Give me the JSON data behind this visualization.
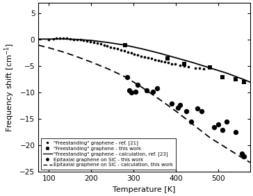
{
  "title": "",
  "xlabel": "Temperature [K]",
  "ylabel": "Frequency shift [cm$^{-1}$]",
  "xlim": [
    75,
    575
  ],
  "ylim": [
    -25,
    7
  ],
  "yticks": [
    -25,
    -20,
    -15,
    -10,
    -5,
    0,
    5
  ],
  "xticks": [
    100,
    200,
    300,
    400,
    500
  ],
  "freestanding_ref21_x": [
    100,
    110,
    118,
    126,
    134,
    142,
    150,
    158,
    166,
    174,
    182,
    190,
    198,
    206,
    214,
    222,
    230,
    238,
    246,
    254,
    262,
    270,
    278,
    286,
    294,
    302,
    310,
    318,
    326,
    334,
    342,
    350,
    358,
    366,
    374,
    382,
    390,
    398,
    410,
    420,
    430,
    445,
    455,
    465
  ],
  "freestanding_ref21_y": [
    0.1,
    0.2,
    0.25,
    0.3,
    0.3,
    0.25,
    0.2,
    0.1,
    0.05,
    0.0,
    -0.1,
    -0.2,
    -0.3,
    -0.5,
    -0.6,
    -0.8,
    -1.0,
    -1.2,
    -1.4,
    -1.5,
    -1.7,
    -1.9,
    -2.1,
    -2.3,
    -2.5,
    -2.7,
    -2.9,
    -3.1,
    -3.2,
    -3.4,
    -3.5,
    -3.7,
    -3.9,
    -4.0,
    -4.2,
    -4.3,
    -4.5,
    -4.6,
    -4.8,
    -5.0,
    -5.1,
    -5.3,
    -5.4,
    -5.5
  ],
  "freestanding_thiswork_x": [
    280,
    380,
    420,
    480,
    510,
    540,
    560
  ],
  "freestanding_thiswork_y": [
    -1.0,
    -3.5,
    -4.5,
    -5.2,
    -7.0,
    -7.5,
    -8.0
  ],
  "freestanding_calc_x": [
    75,
    100,
    130,
    160,
    200,
    240,
    280,
    320,
    360,
    400,
    440,
    480,
    520,
    560,
    575
  ],
  "freestanding_calc_y": [
    0.15,
    0.15,
    0.2,
    0.1,
    -0.1,
    -0.5,
    -1.0,
    -1.7,
    -2.5,
    -3.4,
    -4.3,
    -5.3,
    -6.3,
    -7.5,
    -8.0
  ],
  "epitaxial_thiswork_x": [
    285,
    290,
    295,
    305,
    310,
    330,
    345,
    355,
    390,
    405,
    410,
    425,
    435,
    450,
    460,
    490,
    500,
    510,
    520,
    540,
    555,
    560
  ],
  "epitaxial_thiswork_y": [
    -7.0,
    -9.5,
    -10.0,
    -9.8,
    -8.5,
    -9.5,
    -9.8,
    -9.2,
    -12.0,
    -12.8,
    -12.3,
    -13.5,
    -15.5,
    -13.0,
    -13.5,
    -16.5,
    -16.0,
    -17.0,
    -15.5,
    -17.5,
    -21.5,
    -22.0
  ],
  "epitaxial_calc_x": [
    75,
    100,
    130,
    160,
    200,
    240,
    280,
    320,
    360,
    400,
    440,
    480,
    520,
    560,
    575
  ],
  "epitaxial_calc_y": [
    -1.0,
    -1.5,
    -2.2,
    -3.0,
    -4.2,
    -5.5,
    -7.0,
    -9.0,
    -11.2,
    -13.5,
    -16.0,
    -18.5,
    -20.5,
    -22.5,
    -23.2
  ],
  "color_black": "#000000",
  "bg_color": "#ffffff"
}
